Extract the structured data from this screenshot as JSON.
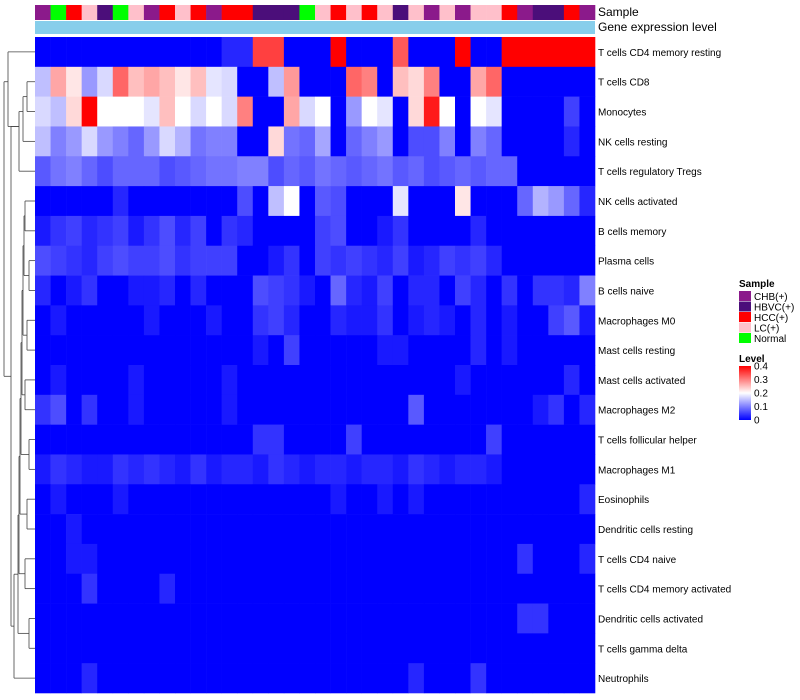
{
  "chart_data": {
    "type": "heatmap",
    "annotation_labels": [
      "Sample",
      "Gene expression level"
    ],
    "row_labels": [
      "T cells CD4 memory resting",
      "T cells CD8",
      "Monocytes",
      "NK cells resting",
      "T cells regulatory  Tregs",
      "NK cells activated",
      "B cells memory",
      "Plasma cells",
      "B cells naive",
      "Macrophages M0",
      "Mast cells resting",
      "Mast cells activated",
      "Macrophages M2",
      "T cells follicular helper",
      "Macrophages M1",
      "Eosinophils",
      "Dendritic cells resting",
      "T cells CD4 naive",
      "T cells CD4 memory activated",
      "Dendritic cells activated",
      "T cells gamma delta",
      "Neutrophils"
    ],
    "sample_annotation": [
      "CHB(+)",
      "Normal",
      "HCC(+)",
      "LC(+)",
      "HBVC(+)",
      "Normal",
      "LC(+)",
      "CHB(+)",
      "HCC(+)",
      "LC(+)",
      "HCC(+)",
      "CHB(+)",
      "HCC(+)",
      "HCC(+)",
      "HBVC(+)",
      "HBVC(+)",
      "HBVC(+)",
      "Normal",
      "LC(+)",
      "HCC(+)",
      "LC(+)",
      "HCC(+)",
      "LC(+)",
      "HBVC(+)",
      "LC(+)",
      "CHB(+)",
      "LC(+)",
      "CHB(+)",
      "LC(+)",
      "LC(+)",
      "HCC(+)",
      "CHB(+)",
      "HBVC(+)",
      "HBVC(+)",
      "HCC(+)",
      "CHB(+)"
    ],
    "values": [
      [
        0.0,
        0.0,
        0.0,
        0.0,
        0.0,
        0.0,
        0.0,
        0.0,
        0.0,
        0.0,
        0.0,
        0.0,
        0.03,
        0.03,
        0.35,
        0.35,
        0.0,
        0.0,
        0.0,
        0.4,
        0.0,
        0.0,
        0.0,
        0.33,
        0.0,
        0.0,
        0.0,
        0.4,
        0.0,
        0.0,
        0.4,
        0.4,
        0.4,
        0.4,
        0.4,
        0.4
      ],
      [
        0.15,
        0.27,
        0.22,
        0.12,
        0.17,
        0.32,
        0.25,
        0.27,
        0.25,
        0.22,
        0.25,
        0.18,
        0.17,
        0.0,
        0.0,
        0.15,
        0.28,
        0.0,
        0.0,
        0.0,
        0.32,
        0.3,
        0.0,
        0.25,
        0.23,
        0.3,
        0.0,
        0.0,
        0.27,
        0.32,
        0.0,
        0.0,
        0.0,
        0.0,
        0.0,
        0.0
      ],
      [
        0.17,
        0.15,
        0.23,
        0.4,
        0.2,
        0.2,
        0.2,
        0.18,
        0.25,
        0.2,
        0.17,
        0.2,
        0.17,
        0.3,
        0.0,
        0.0,
        0.27,
        0.17,
        0.2,
        0.0,
        0.12,
        0.2,
        0.18,
        0.0,
        0.23,
        0.38,
        0.2,
        0.0,
        0.2,
        0.18,
        0.0,
        0.0,
        0.0,
        0.0,
        0.05,
        0.0
      ],
      [
        0.15,
        0.1,
        0.12,
        0.17,
        0.12,
        0.1,
        0.08,
        0.12,
        0.17,
        0.14,
        0.09,
        0.1,
        0.1,
        0.0,
        0.0,
        0.23,
        0.09,
        0.08,
        0.13,
        0.0,
        0.08,
        0.1,
        0.12,
        0.0,
        0.06,
        0.06,
        0.1,
        0.0,
        0.1,
        0.08,
        0.0,
        0.0,
        0.0,
        0.0,
        0.03,
        0.0
      ],
      [
        0.07,
        0.09,
        0.1,
        0.08,
        0.06,
        0.08,
        0.08,
        0.08,
        0.06,
        0.07,
        0.08,
        0.09,
        0.09,
        0.1,
        0.1,
        0.06,
        0.08,
        0.07,
        0.09,
        0.08,
        0.07,
        0.08,
        0.09,
        0.07,
        0.08,
        0.06,
        0.07,
        0.08,
        0.07,
        0.08,
        0.08,
        0.0,
        0.0,
        0.0,
        0.0,
        0.0
      ],
      [
        0.0,
        0.0,
        0.0,
        0.0,
        0.0,
        0.03,
        0.0,
        0.0,
        0.0,
        0.0,
        0.0,
        0.0,
        0.0,
        0.06,
        0.0,
        0.15,
        0.2,
        0.0,
        0.07,
        0.06,
        0.0,
        0.0,
        0.0,
        0.18,
        0.0,
        0.0,
        0.0,
        0.22,
        0.0,
        0.0,
        0.0,
        0.08,
        0.14,
        0.12,
        0.08,
        0.03
      ],
      [
        0.02,
        0.04,
        0.05,
        0.03,
        0.04,
        0.05,
        0.02,
        0.04,
        0.06,
        0.03,
        0.05,
        0.0,
        0.04,
        0.03,
        0.0,
        0.0,
        0.0,
        0.0,
        0.05,
        0.06,
        0.0,
        0.0,
        0.02,
        0.04,
        0.0,
        0.0,
        0.0,
        0.0,
        0.03,
        0.0,
        0.0,
        0.0,
        0.0,
        0.0,
        0.0,
        0.0
      ],
      [
        0.06,
        0.05,
        0.04,
        0.03,
        0.05,
        0.06,
        0.05,
        0.05,
        0.06,
        0.04,
        0.05,
        0.05,
        0.05,
        0.0,
        0.0,
        0.02,
        0.04,
        0.0,
        0.05,
        0.04,
        0.05,
        0.04,
        0.03,
        0.05,
        0.02,
        0.03,
        0.05,
        0.04,
        0.05,
        0.03,
        0.0,
        0.0,
        0.0,
        0.0,
        0.0,
        0.0
      ],
      [
        0.03,
        0.0,
        0.02,
        0.04,
        0.0,
        0.0,
        0.02,
        0.02,
        0.03,
        0.0,
        0.03,
        0.0,
        0.0,
        0.0,
        0.06,
        0.05,
        0.04,
        0.02,
        0.0,
        0.08,
        0.03,
        0.02,
        0.05,
        0.0,
        0.03,
        0.03,
        0.0,
        0.05,
        0.03,
        0.0,
        0.04,
        0.0,
        0.04,
        0.04,
        0.03,
        0.1
      ],
      [
        0.0,
        0.02,
        0.0,
        0.0,
        0.0,
        0.0,
        0.0,
        0.02,
        0.0,
        0.0,
        0.0,
        0.02,
        0.0,
        0.0,
        0.04,
        0.05,
        0.03,
        0.0,
        0.0,
        0.03,
        0.02,
        0.02,
        0.04,
        0.0,
        0.02,
        0.03,
        0.02,
        0.0,
        0.03,
        0.0,
        0.02,
        0.0,
        0.0,
        0.05,
        0.07,
        0.02
      ],
      [
        0.0,
        0.0,
        0.0,
        0.0,
        0.0,
        0.0,
        0.0,
        0.0,
        0.0,
        0.0,
        0.0,
        0.0,
        0.0,
        0.0,
        0.02,
        0.0,
        0.05,
        0.0,
        0.0,
        0.0,
        0.0,
        0.0,
        0.02,
        0.02,
        0.0,
        0.0,
        0.0,
        0.0,
        0.03,
        0.0,
        0.02,
        0.0,
        0.0,
        0.0,
        0.0,
        0.0
      ],
      [
        0.0,
        0.02,
        0.0,
        0.0,
        0.0,
        0.0,
        0.02,
        0.0,
        0.0,
        0.0,
        0.0,
        0.0,
        0.02,
        0.0,
        0.0,
        0.0,
        0.0,
        0.0,
        0.0,
        0.0,
        0.0,
        0.0,
        0.0,
        0.0,
        0.0,
        0.0,
        0.0,
        0.02,
        0.0,
        0.0,
        0.0,
        0.0,
        0.0,
        0.0,
        0.03,
        0.0
      ],
      [
        0.04,
        0.06,
        0.0,
        0.04,
        0.0,
        0.0,
        0.02,
        0.0,
        0.0,
        0.0,
        0.0,
        0.0,
        0.02,
        0.0,
        0.0,
        0.0,
        0.0,
        0.0,
        0.0,
        0.0,
        0.0,
        0.0,
        0.0,
        0.0,
        0.07,
        0.0,
        0.0,
        0.0,
        0.0,
        0.0,
        0.0,
        0.0,
        0.02,
        0.04,
        0.0,
        0.03
      ],
      [
        0.0,
        0.0,
        0.0,
        0.0,
        0.0,
        0.0,
        0.0,
        0.0,
        0.0,
        0.0,
        0.0,
        0.0,
        0.0,
        0.0,
        0.04,
        0.04,
        0.0,
        0.0,
        0.0,
        0.0,
        0.05,
        0.0,
        0.0,
        0.0,
        0.0,
        0.0,
        0.0,
        0.0,
        0.0,
        0.05,
        0.0,
        0.0,
        0.0,
        0.0,
        0.0,
        0.0
      ],
      [
        0.02,
        0.04,
        0.03,
        0.02,
        0.02,
        0.04,
        0.03,
        0.04,
        0.03,
        0.02,
        0.04,
        0.02,
        0.03,
        0.03,
        0.02,
        0.04,
        0.03,
        0.02,
        0.03,
        0.03,
        0.02,
        0.03,
        0.03,
        0.02,
        0.04,
        0.03,
        0.02,
        0.03,
        0.03,
        0.02,
        0.0,
        0.0,
        0.0,
        0.0,
        0.0,
        0.0
      ],
      [
        0.0,
        0.02,
        0.0,
        0.0,
        0.0,
        0.02,
        0.0,
        0.0,
        0.0,
        0.0,
        0.0,
        0.0,
        0.0,
        0.0,
        0.0,
        0.0,
        0.0,
        0.0,
        0.0,
        0.02,
        0.0,
        0.0,
        0.02,
        0.0,
        0.02,
        0.0,
        0.0,
        0.0,
        0.0,
        0.0,
        0.0,
        0.0,
        0.0,
        0.0,
        0.0,
        0.03
      ],
      [
        0.0,
        0.0,
        0.02,
        0.0,
        0.0,
        0.0,
        0.0,
        0.0,
        0.0,
        0.0,
        0.0,
        0.0,
        0.0,
        0.0,
        0.0,
        0.0,
        0.0,
        0.0,
        0.0,
        0.0,
        0.0,
        0.0,
        0.0,
        0.0,
        0.0,
        0.0,
        0.0,
        0.0,
        0.0,
        0.0,
        0.0,
        0.0,
        0.0,
        0.0,
        0.0,
        0.0
      ],
      [
        0.0,
        0.0,
        0.02,
        0.02,
        0.0,
        0.0,
        0.0,
        0.0,
        0.0,
        0.0,
        0.0,
        0.0,
        0.0,
        0.0,
        0.0,
        0.0,
        0.0,
        0.0,
        0.0,
        0.0,
        0.0,
        0.0,
        0.0,
        0.0,
        0.0,
        0.0,
        0.0,
        0.0,
        0.0,
        0.0,
        0.0,
        0.04,
        0.0,
        0.0,
        0.0,
        0.03
      ],
      [
        0.0,
        0.0,
        0.0,
        0.04,
        0.0,
        0.0,
        0.0,
        0.0,
        0.03,
        0.0,
        0.0,
        0.0,
        0.0,
        0.0,
        0.0,
        0.0,
        0.0,
        0.0,
        0.0,
        0.0,
        0.0,
        0.0,
        0.0,
        0.0,
        0.0,
        0.0,
        0.0,
        0.0,
        0.0,
        0.0,
        0.0,
        0.0,
        0.0,
        0.0,
        0.0,
        0.0
      ],
      [
        0.0,
        0.0,
        0.0,
        0.0,
        0.0,
        0.0,
        0.0,
        0.0,
        0.0,
        0.0,
        0.0,
        0.0,
        0.0,
        0.0,
        0.0,
        0.0,
        0.0,
        0.0,
        0.0,
        0.0,
        0.0,
        0.0,
        0.0,
        0.0,
        0.0,
        0.0,
        0.0,
        0.0,
        0.0,
        0.0,
        0.0,
        0.04,
        0.04,
        0.0,
        0.0,
        0.0
      ],
      [
        0.0,
        0.0,
        0.0,
        0.0,
        0.0,
        0.0,
        0.0,
        0.0,
        0.0,
        0.0,
        0.0,
        0.0,
        0.0,
        0.0,
        0.0,
        0.0,
        0.0,
        0.0,
        0.0,
        0.0,
        0.0,
        0.0,
        0.0,
        0.0,
        0.0,
        0.0,
        0.0,
        0.0,
        0.0,
        0.0,
        0.0,
        0.0,
        0.0,
        0.0,
        0.0,
        0.0
      ],
      [
        0.0,
        0.0,
        0.0,
        0.03,
        0.0,
        0.0,
        0.0,
        0.0,
        0.0,
        0.0,
        0.0,
        0.0,
        0.0,
        0.0,
        0.0,
        0.0,
        0.0,
        0.0,
        0.0,
        0.0,
        0.0,
        0.0,
        0.0,
        0.0,
        0.03,
        0.0,
        0.0,
        0.0,
        0.04,
        0.0,
        0.0,
        0.0,
        0.0,
        0.0,
        0.0,
        0.0
      ]
    ],
    "sample_legend": {
      "title": "Sample",
      "entries": [
        {
          "label": "CHB(+)",
          "color": "#8B1A8B"
        },
        {
          "label": "HBVC(+)",
          "color": "#4B0E7A"
        },
        {
          "label": "HCC(+)",
          "color": "#FF0000"
        },
        {
          "label": "LC(+)",
          "color": "#FFC0CB"
        },
        {
          "label": "Normal",
          "color": "#00FF00"
        }
      ]
    },
    "level_legend": {
      "title": "Level",
      "ticks": [
        "0.4",
        "0.3",
        "0.2",
        "0.1",
        "0"
      ],
      "range": [
        0,
        0.4
      ],
      "colors": [
        "#0000FF",
        "#FFFFFF",
        "#FF0000"
      ]
    },
    "gene_expression_color": "#87CEEB"
  }
}
